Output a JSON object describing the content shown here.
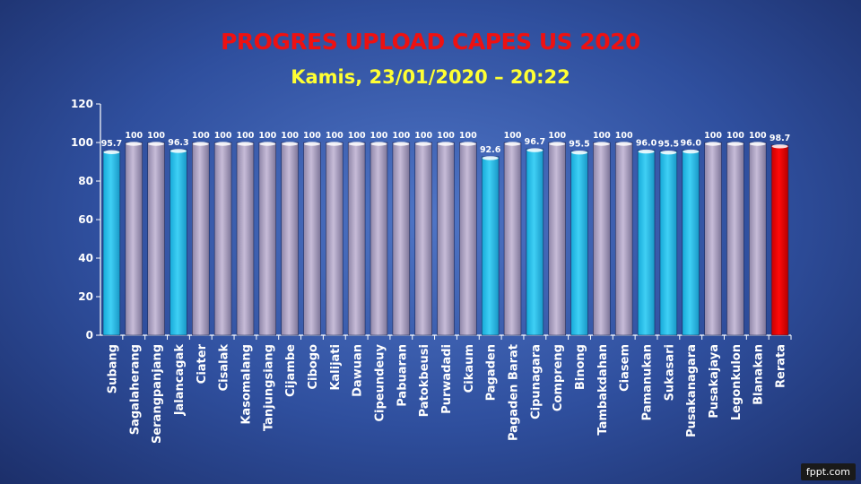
{
  "slide": {
    "title": "PROGRES UPLOAD CAPES US 2020",
    "subtitle": "Kamis, 23/01/2020 – 20:22",
    "watermark": "fppt.com"
  },
  "chart_data": {
    "type": "bar",
    "title": "",
    "xlabel": "",
    "ylabel": "",
    "ylim": [
      0,
      120
    ],
    "yticks": [
      0,
      20,
      40,
      60,
      80,
      100,
      120
    ],
    "grid": false,
    "legend": "none",
    "categories": [
      "Subang",
      "Sagalaherang",
      "Serangpanjang",
      "Jalancagak",
      "Ciater",
      "Cisalak",
      "Kasomalang",
      "Tanjungsiang",
      "Cijambe",
      "Cibogo",
      "Kalijati",
      "Dawuan",
      "Cipeundeuy",
      "Pabuaran",
      "Patokbeusi",
      "Purwadadi",
      "Cikaum",
      "Pagaden",
      "Pagaden Barat",
      "Cipunagara",
      "Compreng",
      "Binong",
      "Tambakdahan",
      "Ciasem",
      "Pamanukan",
      "Sukasari",
      "Pusakanagara",
      "Pusakajaya",
      "Legonkulon",
      "Blanakan",
      "Rerata"
    ],
    "values": [
      95.7,
      100,
      100,
      96.3,
      100,
      100,
      100,
      100,
      100,
      100,
      100,
      100,
      100,
      100,
      100,
      100,
      100,
      92.6,
      100,
      96.7,
      100,
      95.5,
      100,
      100,
      96.0,
      95.5,
      96.0,
      100,
      100,
      100,
      98.7
    ],
    "labels": [
      "95.7",
      "100",
      "100",
      "96.3",
      "100",
      "100",
      "100",
      "100",
      "100",
      "100",
      "100",
      "100",
      "100",
      "100",
      "100",
      "100",
      "100",
      "92.6",
      "100",
      "96.7",
      "100",
      "95.5",
      "100",
      "100",
      "96.0",
      "95.5",
      "96.0",
      "100",
      "100",
      "100",
      "98.7"
    ],
    "colors": {
      "complete": "#c7bcd8",
      "incomplete": "#3fd0f5",
      "average": "#ff0a0a",
      "axis_text": "#ffffff"
    }
  }
}
